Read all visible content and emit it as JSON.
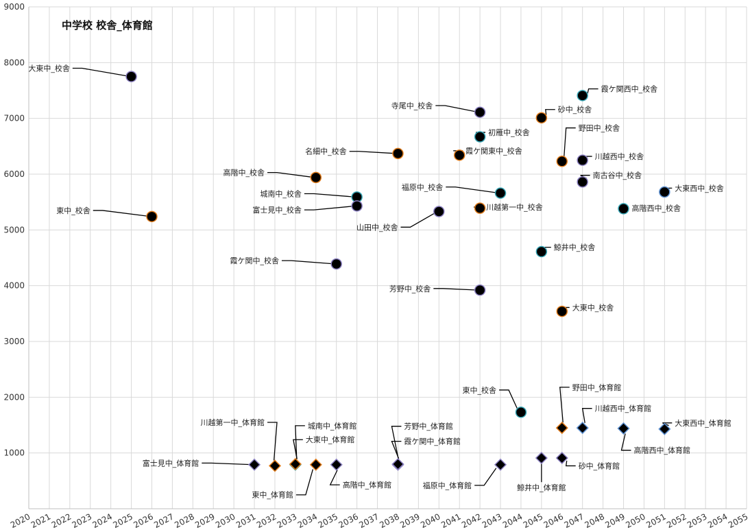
{
  "chart_data": {
    "type": "scatter",
    "title": "中学校 校舎_体育館",
    "xlim": [
      2020,
      2055
    ],
    "ylim": [
      0,
      9000
    ],
    "x_ticks": [
      "2020",
      "2021",
      "2022",
      "2023",
      "2024",
      "2025",
      "2026",
      "2027",
      "2028",
      "2029",
      "2030",
      "2031",
      "2032",
      "2033",
      "2034",
      "2035",
      "2036",
      "2037",
      "2038",
      "2039",
      "2040",
      "2041",
      "2042",
      "2043",
      "2044",
      "2045",
      "2046",
      "2047",
      "2048",
      "2049",
      "2050",
      "2051",
      "2052",
      "2053",
      "2054",
      "2055"
    ],
    "y_ticks": [
      "1000",
      "2000",
      "3000",
      "4000",
      "5000",
      "6000",
      "7000",
      "8000",
      "9000"
    ],
    "grid": true,
    "colors": {
      "fill": "#000000",
      "edge_orange": "#e07b1a",
      "edge_teal": "#3aa8b8",
      "edge_purple": "#8a7fc0",
      "edge_blue": "#5b8fd0",
      "grid": "#d9d9d9"
    },
    "points": [
      {
        "label": "大東中_校舎",
        "x": 2025,
        "y": 7750,
        "marker": "circle",
        "edge": "purple",
        "lx": 2022.0,
        "ly": 7850,
        "anchor": "end"
      },
      {
        "label": "東中_校舎",
        "x": 2026,
        "y": 5240,
        "marker": "circle",
        "edge": "orange",
        "lx": 2023.0,
        "ly": 5300,
        "anchor": "end"
      },
      {
        "label": "高階中_校舎",
        "x": 2034,
        "y": 5940,
        "marker": "circle",
        "edge": "orange",
        "lx": 2031.5,
        "ly": 5980,
        "anchor": "end"
      },
      {
        "label": "名細中_校舎",
        "x": 2038,
        "y": 6370,
        "marker": "circle",
        "edge": "orange",
        "lx": 2035.5,
        "ly": 6360,
        "anchor": "end"
      },
      {
        "label": "城南中_校舎",
        "x": 2036,
        "y": 5590,
        "marker": "circle",
        "edge": "teal",
        "lx": 2033.3,
        "ly": 5600,
        "anchor": "end"
      },
      {
        "label": "富士見中_校舎",
        "x": 2036,
        "y": 5430,
        "marker": "circle",
        "edge": "purple",
        "lx": 2033.3,
        "ly": 5310,
        "anchor": "end"
      },
      {
        "label": "霞ケ関中_校舎",
        "x": 2035,
        "y": 4390,
        "marker": "circle",
        "edge": "purple",
        "lx": 2032.2,
        "ly": 4400,
        "anchor": "end"
      },
      {
        "label": "山田中_校舎",
        "x": 2040,
        "y": 5330,
        "marker": "circle",
        "edge": "purple",
        "lx": 2038.0,
        "ly": 5000,
        "anchor": "end"
      },
      {
        "label": "寺尾中_校舎",
        "x": 2042,
        "y": 7110,
        "marker": "circle",
        "edge": "purple",
        "lx": 2039.7,
        "ly": 7180,
        "anchor": "end"
      },
      {
        "label": "初雁中_校舎",
        "x": 2042,
        "y": 6670,
        "marker": "circle",
        "edge": "teal",
        "lx": 2042.4,
        "ly": 6700,
        "anchor": "start"
      },
      {
        "label": "霞ケ関東中_校舎",
        "x": 2041,
        "y": 6340,
        "marker": "circle",
        "edge": "orange",
        "lx": 2041.3,
        "ly": 6370,
        "anchor": "start"
      },
      {
        "label": "福原中_校舎",
        "x": 2043,
        "y": 5660,
        "marker": "circle",
        "edge": "teal",
        "lx": 2040.2,
        "ly": 5720,
        "anchor": "end"
      },
      {
        "label": "川越第一中_校舎",
        "x": 2042,
        "y": 5390,
        "marker": "circle",
        "edge": "orange",
        "lx": 2042.3,
        "ly": 5360,
        "anchor": "start"
      },
      {
        "label": "芳野中_校舎",
        "x": 2042,
        "y": 3920,
        "marker": "circle",
        "edge": "purple",
        "lx": 2039.6,
        "ly": 3900,
        "anchor": "end"
      },
      {
        "label": "砂中_校舎",
        "x": 2045,
        "y": 7010,
        "marker": "circle",
        "edge": "orange",
        "lx": 2045.8,
        "ly": 7110,
        "anchor": "start"
      },
      {
        "label": "野田中_校舎",
        "x": 2046,
        "y": 6230,
        "marker": "circle",
        "edge": "orange",
        "lx": 2046.8,
        "ly": 6780,
        "anchor": "start"
      },
      {
        "label": "鯨井中_校舎",
        "x": 2045,
        "y": 4610,
        "marker": "circle",
        "edge": "teal",
        "lx": 2045.6,
        "ly": 4640,
        "anchor": "start"
      },
      {
        "label": "大東中_校舎",
        "x": 2046,
        "y": 3540,
        "marker": "circle",
        "edge": "orange",
        "lx": 2046.5,
        "ly": 3560,
        "anchor": "start"
      },
      {
        "label": "霞ケ関西中_校舎",
        "x": 2047,
        "y": 7410,
        "marker": "circle",
        "edge": "teal",
        "lx": 2047.9,
        "ly": 7480,
        "anchor": "start"
      },
      {
        "label": "川越西中_校舎",
        "x": 2047,
        "y": 6250,
        "marker": "circle",
        "edge": "purple",
        "lx": 2047.6,
        "ly": 6270,
        "anchor": "start"
      },
      {
        "label": "南古谷中_校舎",
        "x": 2047,
        "y": 5860,
        "marker": "circle",
        "edge": "purple",
        "lx": 2047.5,
        "ly": 5930,
        "anchor": "start"
      },
      {
        "label": "高階西中_校舎",
        "x": 2049,
        "y": 5380,
        "marker": "circle",
        "edge": "teal",
        "lx": 2049.4,
        "ly": 5340,
        "anchor": "start"
      },
      {
        "label": "大東西中_校舎",
        "x": 2051,
        "y": 5680,
        "marker": "circle",
        "edge": "blue",
        "lx": 2051.5,
        "ly": 5700,
        "anchor": "start"
      },
      {
        "label": "東中_校舎",
        "x": 2044,
        "y": 1730,
        "marker": "circle",
        "edge": "teal",
        "lx": 2042.8,
        "ly": 2080,
        "anchor": "end"
      },
      {
        "label": "富士見中_体育館",
        "x": 2031,
        "y": 790,
        "marker": "diamond",
        "edge": "purple",
        "lx": 2028.3,
        "ly": 770,
        "anchor": "end"
      },
      {
        "label": "川越第一中_体育館",
        "x": 2032,
        "y": 770,
        "marker": "diamond",
        "edge": "orange",
        "lx": 2031.5,
        "ly": 1500,
        "anchor": "end"
      },
      {
        "label": "城南中_体育館",
        "x": 2033,
        "y": 790,
        "marker": "diamond",
        "edge": "teal",
        "lx": 2033.6,
        "ly": 1440,
        "anchor": "start"
      },
      {
        "label": "大東中_体育館",
        "x": 2033,
        "y": 800,
        "marker": "diamond",
        "edge": "orange",
        "lx": 2033.5,
        "ly": 1190,
        "anchor": "start"
      },
      {
        "label": "東中_体育館",
        "x": 2034,
        "y": 790,
        "marker": "diamond",
        "edge": "orange",
        "lx": 2032.9,
        "ly": 200,
        "anchor": "end"
      },
      {
        "label": "高階中_体育館",
        "x": 2035,
        "y": 790,
        "marker": "diamond",
        "edge": "purple",
        "lx": 2035.3,
        "ly": 380,
        "anchor": "start"
      },
      {
        "label": "芳野中_体育館",
        "x": 2038,
        "y": 790,
        "marker": "diamond",
        "edge": "purple",
        "lx": 2038.3,
        "ly": 1430,
        "anchor": "start"
      },
      {
        "label": "霞ケ関中_体育館",
        "x": 2038,
        "y": 800,
        "marker": "diamond",
        "edge": "purple",
        "lx": 2038.3,
        "ly": 1160,
        "anchor": "start"
      },
      {
        "label": "福原中_体育館",
        "x": 2043,
        "y": 790,
        "marker": "diamond",
        "edge": "purple",
        "lx": 2041.6,
        "ly": 370,
        "anchor": "end"
      },
      {
        "label": "鯨井中_体育館",
        "x": 2045,
        "y": 910,
        "marker": "diamond",
        "edge": "purple",
        "lx": 2045.0,
        "ly": 330,
        "anchor": "middle"
      },
      {
        "label": "砂中_体育館",
        "x": 2046,
        "y": 910,
        "marker": "diamond",
        "edge": "purple",
        "lx": 2046.8,
        "ly": 720,
        "anchor": "start"
      },
      {
        "label": "野田中_体育館",
        "x": 2046,
        "y": 1450,
        "marker": "diamond",
        "edge": "orange",
        "lx": 2046.5,
        "ly": 2130,
        "anchor": "start"
      },
      {
        "label": "川越西中_体育館",
        "x": 2047,
        "y": 1450,
        "marker": "diamond",
        "edge": "blue",
        "lx": 2047.6,
        "ly": 1750,
        "anchor": "start"
      },
      {
        "label": "高階西中_体育館",
        "x": 2049,
        "y": 1440,
        "marker": "diamond",
        "edge": "blue",
        "lx": 2049.5,
        "ly": 1000,
        "anchor": "start"
      },
      {
        "label": "大東西中_体育館",
        "x": 2051,
        "y": 1430,
        "marker": "diamond",
        "edge": "blue",
        "lx": 2051.5,
        "ly": 1490,
        "anchor": "start"
      }
    ]
  }
}
